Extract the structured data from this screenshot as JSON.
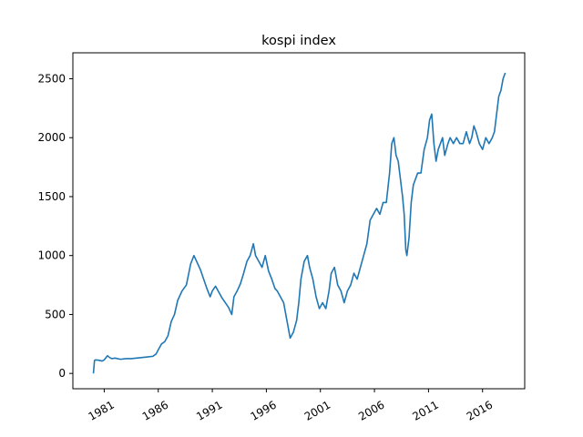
{
  "chart_data": {
    "type": "line",
    "title": "kospi index",
    "xlabel": "",
    "ylabel": "",
    "xlim": [
      1978.1,
      2019.9
    ],
    "ylim": [
      -130,
      2720
    ],
    "x_ticks": [
      1981,
      1986,
      1991,
      1996,
      2001,
      2006,
      2011,
      2016
    ],
    "x_tick_labels": [
      "1981",
      "1986",
      "1991",
      "1996",
      "2001",
      "2006",
      "2011",
      "2016"
    ],
    "y_ticks": [
      0,
      500,
      1000,
      1500,
      2000,
      2500
    ],
    "y_tick_labels": [
      "0",
      "500",
      "1000",
      "1500",
      "2000",
      "2500"
    ],
    "grid": false,
    "series": [
      {
        "color": "#1f77b4",
        "x": [
          1980.0,
          1980.1,
          1980.2,
          1980.5,
          1980.8,
          1981.0,
          1981.3,
          1981.5,
          1981.7,
          1982.0,
          1982.5,
          1983.0,
          1983.5,
          1984.0,
          1984.5,
          1985.0,
          1985.5,
          1985.8,
          1986.0,
          1986.3,
          1986.6,
          1986.9,
          1987.2,
          1987.5,
          1987.8,
          1988.2,
          1988.6,
          1989.0,
          1989.3,
          1989.6,
          1989.9,
          1990.2,
          1990.5,
          1990.8,
          1991.0,
          1991.3,
          1991.6,
          1991.9,
          1992.2,
          1992.5,
          1992.8,
          1993.0,
          1993.3,
          1993.6,
          1993.9,
          1994.2,
          1994.5,
          1994.8,
          1995.0,
          1995.3,
          1995.6,
          1995.9,
          1996.2,
          1996.5,
          1996.8,
          1997.0,
          1997.3,
          1997.6,
          1997.8,
          1998.0,
          1998.2,
          1998.5,
          1998.8,
          1999.0,
          1999.2,
          1999.5,
          1999.8,
          2000.0,
          2000.3,
          2000.6,
          2000.9,
          2001.2,
          2001.5,
          2001.8,
          2002.0,
          2002.3,
          2002.6,
          2002.9,
          2003.2,
          2003.5,
          2003.8,
          2004.1,
          2004.4,
          2004.7,
          2005.0,
          2005.3,
          2005.6,
          2005.9,
          2006.2,
          2006.5,
          2006.8,
          2007.1,
          2007.4,
          2007.6,
          2007.8,
          2008.0,
          2008.2,
          2008.4,
          2008.6,
          2008.75,
          2008.9,
          2009.0,
          2009.2,
          2009.4,
          2009.6,
          2009.8,
          2010.0,
          2010.3,
          2010.6,
          2010.9,
          2011.1,
          2011.3,
          2011.5,
          2011.7,
          2011.9,
          2012.1,
          2012.3,
          2012.5,
          2012.8,
          2013.0,
          2013.3,
          2013.6,
          2013.9,
          2014.2,
          2014.5,
          2014.8,
          2015.0,
          2015.2,
          2015.4,
          2015.7,
          2016.0,
          2016.3,
          2016.6,
          2016.9,
          2017.1,
          2017.3,
          2017.5,
          2017.7,
          2017.9,
          2018.1
        ],
        "y": [
          0,
          110,
          115,
          112,
          105,
          115,
          150,
          135,
          125,
          130,
          120,
          125,
          125,
          130,
          135,
          140,
          145,
          165,
          200,
          250,
          270,
          320,
          440,
          500,
          620,
          700,
          750,
          930,
          1000,
          940,
          880,
          800,
          720,
          650,
          700,
          740,
          690,
          640,
          600,
          560,
          500,
          650,
          700,
          760,
          850,
          950,
          1000,
          1100,
          1000,
          950,
          900,
          1000,
          870,
          800,
          720,
          700,
          650,
          600,
          500,
          400,
          300,
          350,
          450,
          600,
          800,
          950,
          1000,
          900,
          800,
          650,
          550,
          600,
          550,
          700,
          850,
          900,
          750,
          700,
          600,
          700,
          750,
          850,
          800,
          900,
          1000,
          1100,
          1300,
          1350,
          1400,
          1350,
          1450,
          1450,
          1700,
          1950,
          2000,
          1850,
          1800,
          1650,
          1500,
          1350,
          1050,
          1000,
          1150,
          1450,
          1600,
          1650,
          1700,
          1700,
          1900,
          2000,
          2150,
          2200,
          1950,
          1800,
          1900,
          1950,
          2000,
          1850,
          1950,
          2000,
          1950,
          2000,
          1950,
          1950,
          2050,
          1950,
          2000,
          2100,
          2050,
          1950,
          1900,
          2000,
          1950,
          2000,
          2050,
          2200,
          2350,
          2400,
          2500,
          2550
        ]
      }
    ]
  }
}
